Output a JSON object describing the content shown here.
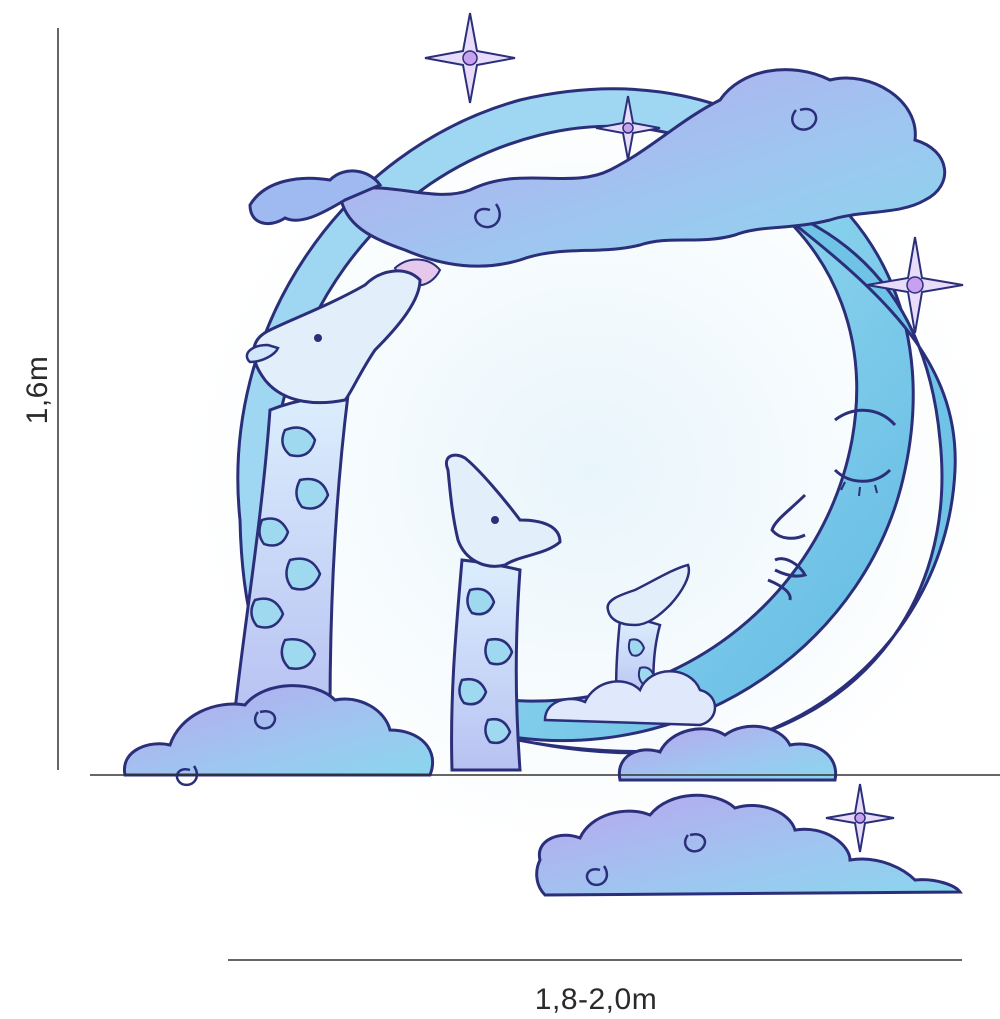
{
  "dimensions": {
    "height_label": "1,6m",
    "width_label": "1,8-2,0m"
  },
  "artwork": {
    "figures": [
      "crescent-moon-face",
      "giraffe-tall",
      "giraffe-medium",
      "giraffe-small",
      "clouds",
      "sparkle-stars"
    ],
    "colors": {
      "outline": "#2b2f7a",
      "moon_fill": "#8fd8ee",
      "moon_shade": "#5fb3e0",
      "cloud_fill": "#a8b8f0",
      "cloud_purple": "#b59be6",
      "giraffe_fill": "#cfe6fb",
      "spot_fill": "#9fd9f0",
      "star_fill": "#c8a0f0",
      "dim_line": "#333333"
    }
  }
}
